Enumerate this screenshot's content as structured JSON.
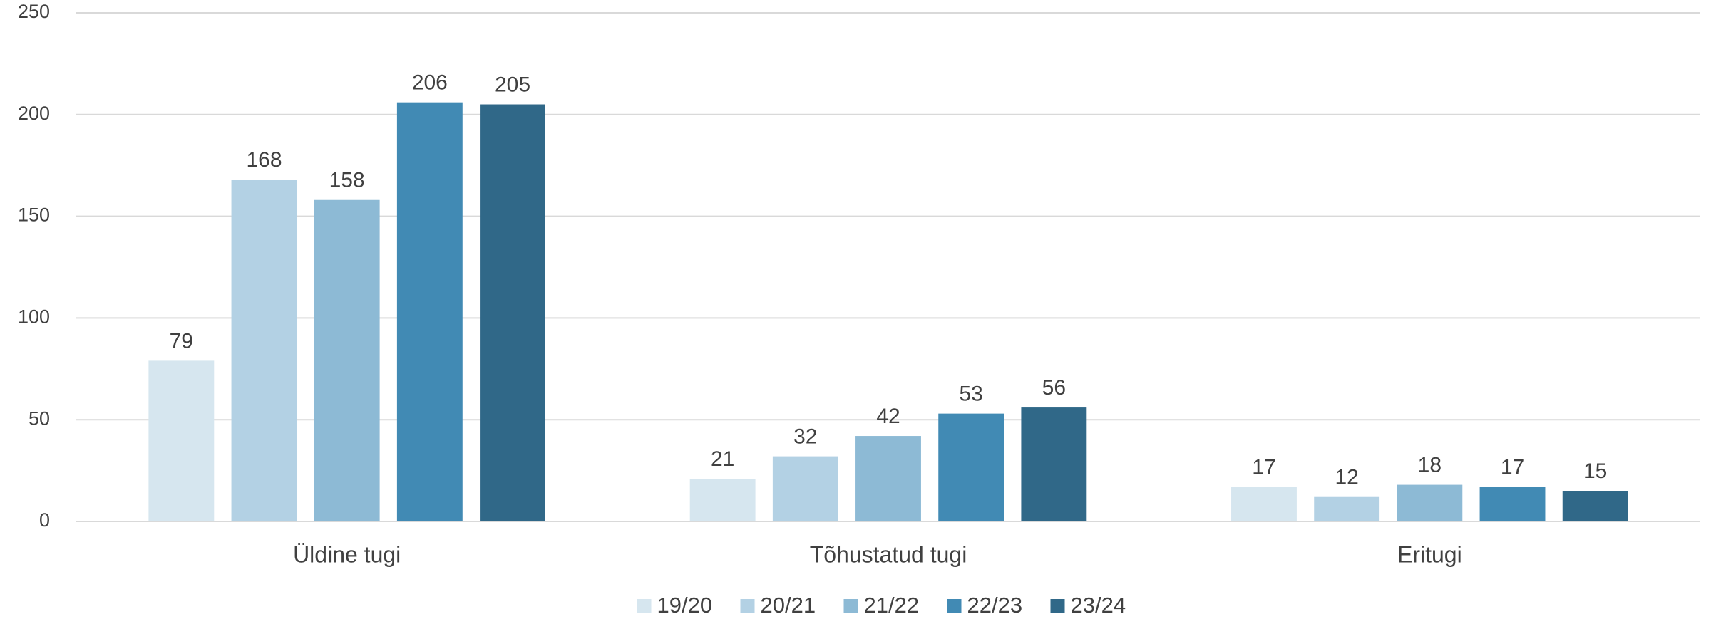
{
  "chart_data": {
    "type": "bar",
    "categories": [
      "Üldine tugi",
      "Tõhustatud tugi",
      "Eritugi"
    ],
    "series": [
      {
        "name": "19/20",
        "color": "#d6e6ef",
        "values": [
          79,
          21,
          17
        ]
      },
      {
        "name": "20/21",
        "color": "#b3d1e4",
        "values": [
          168,
          32,
          12
        ]
      },
      {
        "name": "21/22",
        "color": "#8dbad5",
        "values": [
          158,
          42,
          18
        ]
      },
      {
        "name": "22/23",
        "color": "#418ab4",
        "values": [
          206,
          53,
          17
        ]
      },
      {
        "name": "23/24",
        "color": "#306888",
        "values": [
          205,
          56,
          15
        ]
      }
    ],
    "ylim": [
      0,
      250
    ],
    "yticks": [
      0,
      50,
      100,
      150,
      200,
      250
    ],
    "grid": true,
    "legend": "bottom"
  }
}
